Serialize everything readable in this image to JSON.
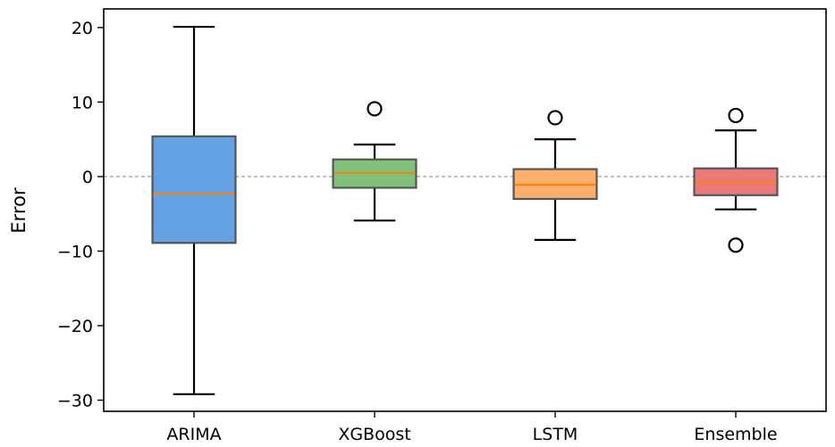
{
  "chart_data": {
    "type": "box",
    "title": "",
    "xlabel": "",
    "ylabel": "Error",
    "ylim": [
      -31.5,
      22.5
    ],
    "yticks": [
      20,
      10,
      0,
      -10,
      -20,
      -30
    ],
    "ytick_labels": [
      "20",
      "10",
      "0",
      "−10",
      "−20",
      "−30"
    ],
    "reference_line": {
      "y": 0,
      "style": "dashed",
      "color": "#888888"
    },
    "median_color": "#ff7f0e",
    "box_edge_color": "#555555",
    "categories": [
      "ARIMA",
      "XGBoost",
      "LSTM",
      "Ensemble"
    ],
    "boxes": [
      {
        "name": "ARIMA",
        "whisker_low": -29.2,
        "q1": -8.9,
        "median": -2.3,
        "q3": 5.4,
        "whisker_high": 20.1,
        "outliers": [],
        "color": "#64a2e3"
      },
      {
        "name": "XGBoost",
        "whisker_low": -5.9,
        "q1": -1.5,
        "median": 0.5,
        "q3": 2.3,
        "whisker_high": 4.3,
        "outliers": [
          9.1
        ],
        "color": "#80c27a"
      },
      {
        "name": "LSTM",
        "whisker_low": -8.5,
        "q1": -3.0,
        "median": -1.1,
        "q3": 1.0,
        "whisker_high": 5.0,
        "outliers": [
          7.9
        ],
        "color": "#fdb06c"
      },
      {
        "name": "Ensemble",
        "whisker_low": -4.4,
        "q1": -2.5,
        "median": -0.7,
        "q3": 1.1,
        "whisker_high": 6.2,
        "outliers": [
          8.2,
          -9.2
        ],
        "color": "#ea7a7a"
      }
    ]
  }
}
